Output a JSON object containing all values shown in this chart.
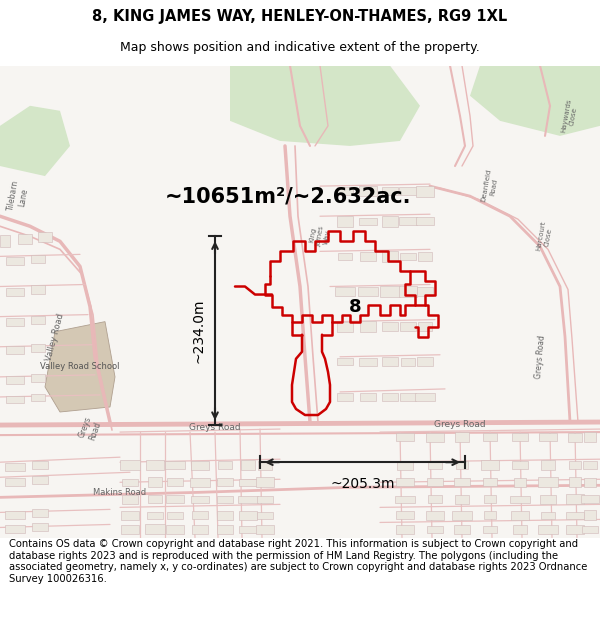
{
  "title": "8, KING JAMES WAY, HENLEY-ON-THAMES, RG9 1XL",
  "subtitle": "Map shows position and indicative extent of the property.",
  "area_label": "~10651m²/~2.632ac.",
  "dim_vertical": "~234.0m",
  "dim_horizontal": "~205.3m",
  "label_number": "8",
  "footer": "Contains OS data © Crown copyright and database right 2021. This information is subject to Crown copyright and database rights 2023 and is reproduced with the permission of HM Land Registry. The polygons (including the associated geometry, namely x, y co-ordinates) are subject to Crown copyright and database rights 2023 Ordnance Survey 100026316.",
  "bg_color": "#ffffff",
  "map_bg": "#f7f5f2",
  "road_color_main": "#e8b8b8",
  "road_color_thin": "#e8c0c0",
  "property_color": "#cc0000",
  "green_color": "#d4e6c8",
  "school_color": "#d4c8b4",
  "building_color": "#e8e0d8",
  "building_edge": "#d0c0c0",
  "text_color": "#000000",
  "dim_color": "#222222",
  "road_label_color": "#666666",
  "title_fontsize": 10.5,
  "subtitle_fontsize": 9,
  "area_fontsize": 15,
  "dim_fontsize": 10,
  "footer_fontsize": 7.2
}
